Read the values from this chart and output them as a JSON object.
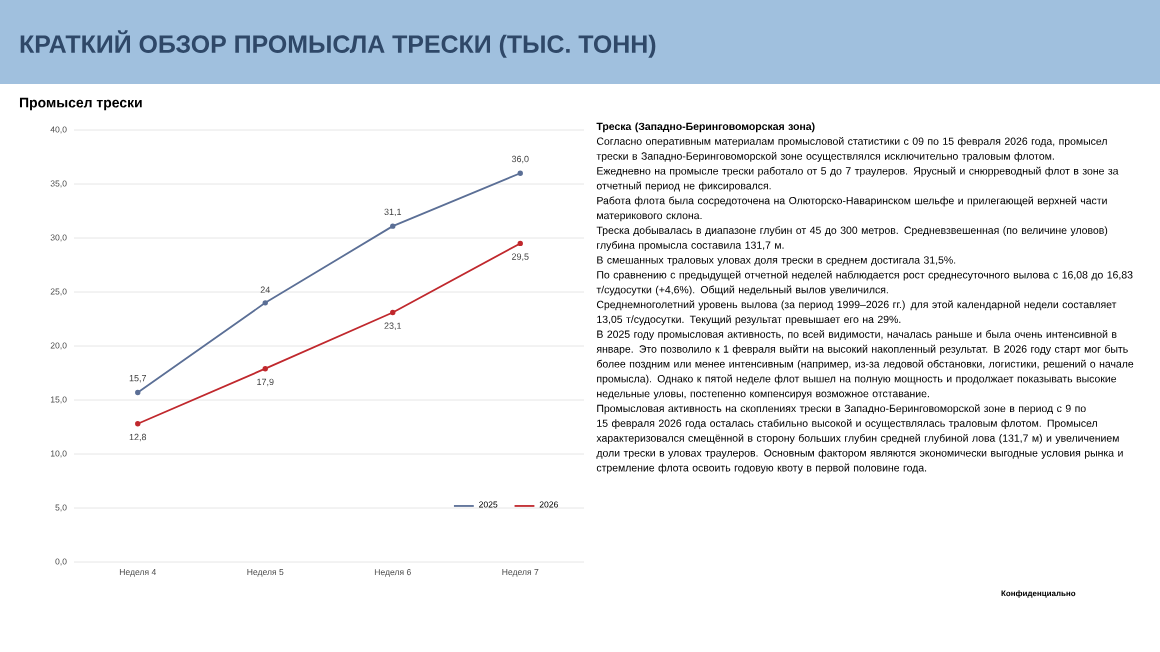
{
  "chart_data": {
    "type": "line",
    "title": "КРАТКИЙ ОБЗОР ПРОМЫСЛА ТРЕСКИ (ТЫС. ТОНН)",
    "subtitle": "Промысел трески",
    "categories": [
      "Неделя 4",
      "Неделя 5",
      "Неделя 6",
      "Неделя 7"
    ],
    "series": [
      {
        "name": "2025",
        "color": "#5b6f96",
        "values": [
          15.7,
          24,
          31.1,
          36.0
        ],
        "value_labels": [
          "15,7",
          "24",
          "31,1",
          "36,0"
        ]
      },
      {
        "name": "2026",
        "color": "#c0282d",
        "values": [
          12.8,
          17.9,
          23.1,
          29.5
        ],
        "value_labels": [
          "12,8",
          "17,9",
          "23,1",
          "29,5"
        ]
      }
    ],
    "ylim": [
      0,
      40
    ],
    "yticks": [
      {
        "value": 0,
        "label": "0,0"
      },
      {
        "value": 5,
        "label": "5,0"
      },
      {
        "value": 10,
        "label": "10,0"
      },
      {
        "value": 15,
        "label": "15,0"
      },
      {
        "value": 20,
        "label": "20,0"
      },
      {
        "value": 25,
        "label": "25,0"
      },
      {
        "value": 30,
        "label": "30,0"
      },
      {
        "value": 35,
        "label": "35,0"
      },
      {
        "value": 40,
        "label": "40,0"
      }
    ],
    "grid": "y",
    "legend": "bottom right",
    "marker": "circle",
    "line_style": "solid",
    "annotations": [
      "Треска (Западно-Беринговоморская зона)",
      "Согласно оперативным материалам промысловой статистики с 09 по 15 февраля 2026 года, промысел трески в Западно-Беринговоморской зоне осуществлялся исключительно траловым флотом.",
      "Ежедневно на промысле трески работало от 5 до 7 траулеров. Ярусный и снюрреводный флот в зоне за отчетный период не фиксировался.",
      "Работа флота была сосредоточена на Олюторско-Наваринском шельфе и прилегающей верхней части материкового склона.",
      "Треска добывалась в диапазоне глубин от 45 до 300 метров. Средневзвешенная (по величине уловов) глубина промысла составила 131,7 м.",
      "В смешанных траловых уловах доля трески в среднем достигала 31,5%.",
      "По сравнению с предыдущей отчетной неделей наблюдается рост среднесуточного вылова с 16,08 до 16,83 т/судосутки (+4,6%). Общий недельный вылов увеличился.",
      "Среднемноголетний уровень вылова (за период 1999–2026 гг.) для этой календарной недели составляет 13,05 т/судосутки. Текущий результат превышает его на 29%.",
      "В 2025 году промысловая активность, по всей видимости, началась раньше и была очень интенсивной в январе. Это позволило к 1 февраля выйти на высокий накопленный результат. В 2026 году старт мог быть более поздним или менее интенсивным (например, из-за ледовой обстановки, логистики, решений о начале промысла). Однако к пятой неделе флот вышел на полную мощность и продолжает показывать высокие недельные уловы, постепенно компенсируя возможное отставание.",
      "Промысловая активность на скоплениях трески в Западно-Беринговоморской зоне в период с 9 по 15 февраля 2026 года осталась стабильно высокой и осуществлялась траловым флотом. Промысел характеризовался смещённой в сторону больших глубин средней глубиной лова (131,7 м) и увеличением доли трески в уловах траулеров. Основным фактором являются экономически выгодные условия рынка и стремление флота освоить годовую квоту в первой половине года.",
      "Конфиденциально"
    ]
  }
}
